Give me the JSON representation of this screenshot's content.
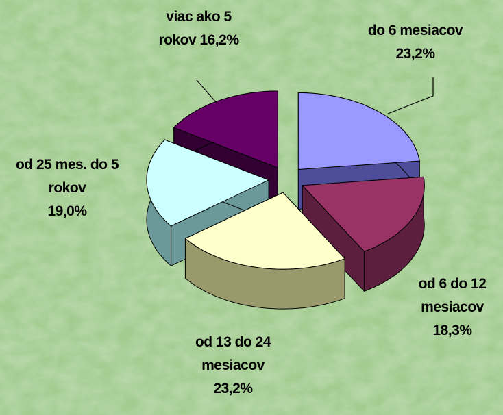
{
  "chart_data": {
    "type": "pie3d",
    "categories": [
      "do 6 mesiacov",
      "od 6 do 12 mesiacov",
      "od 13 do 24 mesiacov",
      "od 25 mes. do 5 rokov",
      "viac ako 5 rokov"
    ],
    "values": [
      23.2,
      18.3,
      23.2,
      19.0,
      16.2
    ],
    "value_labels": [
      "23,2%",
      "18,3%",
      "23,2%",
      "19,0%",
      "16,2%"
    ],
    "colors": [
      "#9999ff",
      "#993366",
      "#ffffcc",
      "#ccffff",
      "#660066"
    ],
    "side_colors": [
      "#4d4d99",
      "#5c1f3d",
      "#99996b",
      "#6b9999",
      "#330033"
    ]
  }
}
